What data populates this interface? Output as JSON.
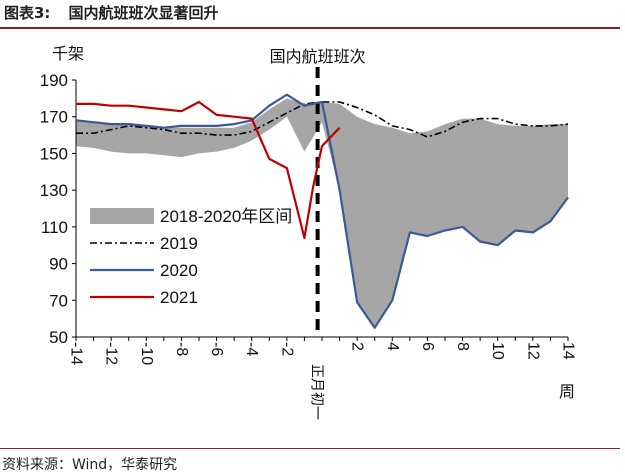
{
  "figure": {
    "number": "图表3:",
    "title": "国内航班班次显著回升"
  },
  "source": "资料来源：Wind，华泰研究",
  "chart_data": {
    "type": "line",
    "title": "",
    "ylabel": "千架",
    "xlabel": "周",
    "annotation": "国内航班班次",
    "marker_label": "正月初一",
    "marker_x": -0.25,
    "ylim": [
      50,
      190
    ],
    "yticks": [
      50,
      70,
      90,
      110,
      130,
      150,
      170,
      190
    ],
    "xlim": [
      -14,
      14
    ],
    "xticks": [
      -14,
      -12,
      -10,
      -8,
      -6,
      -4,
      -2,
      2,
      4,
      6,
      8,
      10,
      12,
      14
    ],
    "grid": false,
    "legend_position": "left-middle",
    "colors": {
      "band": "#a6a6a6",
      "s2019": "#000000",
      "s2020": "#3b5998",
      "s2021": "#c00000"
    },
    "band": {
      "name": "2018-2020年区间",
      "x": [
        -14,
        -13,
        -12,
        -11,
        -10,
        -9,
        -8,
        -7,
        -6,
        -5,
        -4,
        -3,
        -2,
        -1,
        0,
        1,
        2,
        3,
        4,
        5,
        6,
        7,
        8,
        9,
        10,
        11,
        12,
        13,
        14
      ],
      "lower": [
        154,
        153,
        151,
        150,
        150,
        149,
        148,
        150,
        151,
        153,
        157,
        163,
        170,
        151,
        167,
        130,
        69,
        55,
        70,
        107,
        105,
        108,
        110,
        102,
        100,
        108,
        107,
        113,
        126
      ],
      "upper": [
        168,
        167,
        166,
        166,
        165,
        164,
        164,
        164,
        164,
        164,
        167,
        174,
        180,
        177,
        178,
        177,
        170,
        166,
        164,
        161,
        162,
        166,
        169,
        169,
        166,
        165,
        165,
        166,
        166
      ]
    },
    "series": [
      {
        "name": "2019",
        "x": [
          -14,
          -13,
          -12,
          -11,
          -10,
          -9,
          -8,
          -7,
          -6,
          -5,
          -4,
          -3,
          -2,
          -1,
          0,
          1,
          2,
          3,
          4,
          5,
          6,
          7,
          8,
          9,
          10,
          11,
          12,
          13,
          14
        ],
        "values": [
          161,
          161,
          163,
          165,
          164,
          163,
          161,
          161,
          160,
          160,
          162,
          167,
          172,
          177,
          178,
          178,
          175,
          171,
          165,
          163,
          159,
          162,
          167,
          169,
          169,
          166,
          165,
          165,
          166
        ]
      },
      {
        "name": "2020",
        "x": [
          -14,
          -13,
          -12,
          -11,
          -10,
          -9,
          -8,
          -7,
          -6,
          -5,
          -4,
          -3,
          -2,
          -1,
          0,
          1,
          2,
          3,
          4,
          5,
          6,
          7,
          8,
          9,
          10,
          11,
          12,
          13,
          14
        ],
        "values": [
          168,
          167,
          166,
          166,
          165,
          164,
          165,
          165,
          165,
          166,
          168,
          176,
          182,
          176,
          178,
          130,
          69,
          55,
          70,
          107,
          105,
          108,
          110,
          102,
          100,
          108,
          107,
          113,
          126
        ]
      },
      {
        "name": "2021",
        "x": [
          -14,
          -13,
          -12,
          -11,
          -10,
          -9,
          -8,
          -7,
          -6,
          -5,
          -4,
          -3,
          -2,
          -1,
          -0.5,
          0,
          1
        ],
        "values": [
          177,
          177,
          176,
          176,
          175,
          174,
          173,
          178,
          171,
          170,
          169,
          147,
          142,
          104,
          132,
          154,
          164
        ]
      }
    ]
  }
}
